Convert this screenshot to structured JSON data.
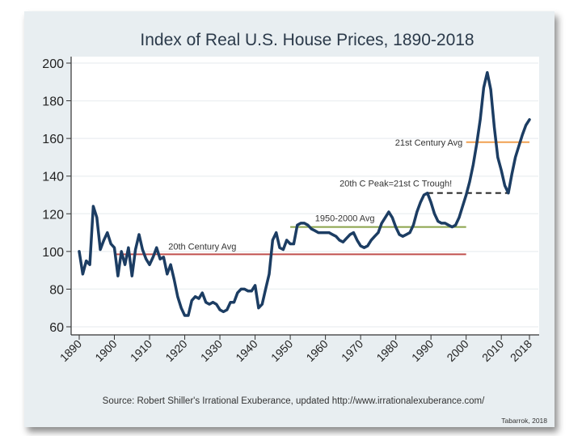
{
  "chart_data": {
    "type": "line",
    "title": "Index of Real U.S. House Prices, 1890-2018",
    "xlabel": "",
    "ylabel": "",
    "xlim": [
      1890,
      2018
    ],
    "ylim": [
      60,
      200
    ],
    "x_ticks": [
      "1890",
      "1900",
      "1910",
      "1920",
      "1930",
      "1940",
      "1950",
      "1960",
      "1970",
      "1980",
      "1990",
      "2000",
      "2010",
      "2018"
    ],
    "y_ticks": [
      "60",
      "80",
      "100",
      "120",
      "140",
      "160",
      "180",
      "200"
    ],
    "grid": true,
    "series": [
      {
        "color": "#1c3d63",
        "x": [
          1890,
          1891,
          1892,
          1893,
          1894,
          1895,
          1896,
          1897,
          1898,
          1899,
          1900,
          1901,
          1902,
          1903,
          1904,
          1905,
          1906,
          1907,
          1908,
          1909,
          1910,
          1911,
          1912,
          1913,
          1914,
          1915,
          1916,
          1917,
          1918,
          1919,
          1920,
          1921,
          1922,
          1923,
          1924,
          1925,
          1926,
          1927,
          1928,
          1929,
          1930,
          1931,
          1932,
          1933,
          1934,
          1935,
          1936,
          1937,
          1938,
          1939,
          1940,
          1941,
          1942,
          1943,
          1944,
          1945,
          1946,
          1947,
          1948,
          1949,
          1950,
          1951,
          1952,
          1953,
          1954,
          1955,
          1956,
          1957,
          1958,
          1959,
          1960,
          1961,
          1962,
          1963,
          1964,
          1965,
          1966,
          1967,
          1968,
          1969,
          1970,
          1971,
          1972,
          1973,
          1974,
          1975,
          1976,
          1977,
          1978,
          1979,
          1980,
          1981,
          1982,
          1983,
          1984,
          1985,
          1986,
          1987,
          1988,
          1989,
          1990,
          1991,
          1992,
          1993,
          1994,
          1995,
          1996,
          1997,
          1998,
          1999,
          2000,
          2001,
          2002,
          2003,
          2004,
          2005,
          2006,
          2007,
          2008,
          2009,
          2010,
          2011,
          2012,
          2013,
          2014,
          2015,
          2016,
          2017,
          2018
        ],
        "y": [
          100,
          88,
          95,
          93,
          124,
          118,
          101,
          106,
          110,
          104,
          102,
          87,
          100,
          93,
          102,
          87,
          101,
          109,
          101,
          96,
          93,
          97,
          102,
          96,
          97,
          88,
          93,
          85,
          76,
          70,
          66,
          66,
          74,
          76,
          75,
          78,
          73,
          72,
          73,
          72,
          69,
          68,
          69,
          73,
          73,
          78,
          80,
          80,
          79,
          79,
          82,
          70,
          72,
          80,
          88,
          106,
          110,
          102,
          101,
          106,
          104,
          104,
          114,
          115,
          115,
          114,
          112,
          111,
          110,
          110,
          110,
          110,
          109,
          108,
          106,
          105,
          107,
          109,
          110,
          106,
          103,
          102,
          103,
          106,
          108,
          110,
          115,
          118,
          121,
          118,
          113,
          109,
          108,
          109,
          110,
          114,
          121,
          126,
          130,
          131,
          126,
          120,
          116,
          115,
          115,
          114,
          113,
          114,
          118,
          124,
          130,
          137,
          146,
          157,
          170,
          187,
          195,
          186,
          166,
          150,
          143,
          135,
          131,
          141,
          150,
          156,
          162,
          167,
          170
        ]
      }
    ],
    "reference_lines": [
      {
        "label": "20th Century Avg",
        "value": 98.5,
        "from": 1900,
        "to": 2000,
        "color": "#c0504d",
        "style": "solid"
      },
      {
        "label": "1950-2000 Avg",
        "value": 113,
        "from": 1950,
        "to": 2000,
        "color": "#8aa34a",
        "style": "solid"
      },
      {
        "label": "21st Century Avg",
        "value": 158,
        "from": 2000,
        "to": 2018,
        "color": "#f0a050",
        "style": "solid"
      },
      {
        "label": "20th C Peak=21st C Trough!",
        "value": 131,
        "from": 1989,
        "to": 2012,
        "color": "#222222",
        "style": "dashed"
      }
    ],
    "source": "Source: Robert Shiller's Irrational Exuberance, updated http://www.irrationalexuberance.com/",
    "credit": "Tabarrok, 2018"
  }
}
